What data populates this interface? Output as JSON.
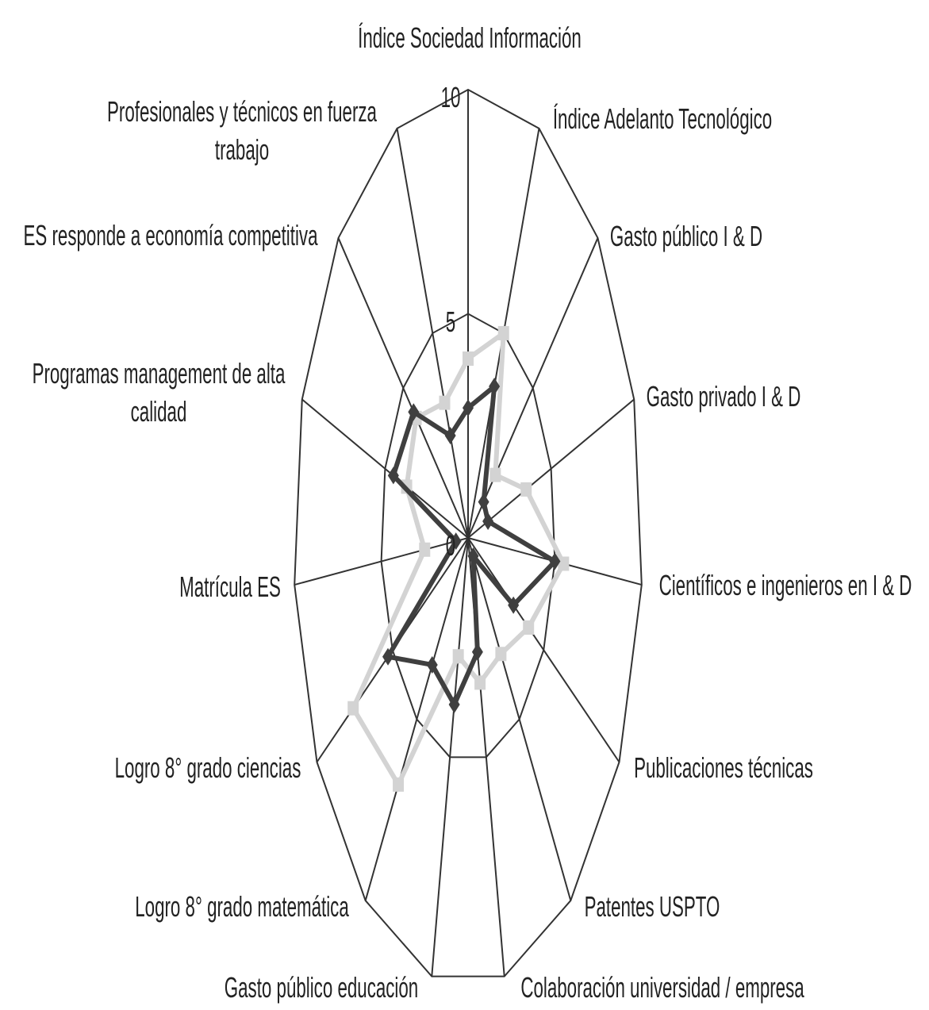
{
  "chart_data": {
    "type": "radar",
    "categories": [
      "Índice Sociedad Información",
      "Índice Adelanto Tecnológico",
      "Gasto público I & D",
      "Gasto privado I & D",
      "Científicos e ingenieros en I & D",
      "Publicaciones técnicas",
      "Patentes  USPTO",
      "Colaboración universidad / empresa",
      "Gasto público  educación",
      "Logro  8° grado matemática",
      "Logro  8° grado ciencias",
      "Matrícula ES",
      "Programas management de alta calidad",
      "ES responde a  economía competitiva",
      "Profesionales y técnicos en fuerza trabajo"
    ],
    "series": [
      {
        "color": "#3f3f3f",
        "marker": "diamond",
        "values": [
          2.9,
          3.7,
          1.2,
          1.2,
          5.0,
          3.0,
          0.5,
          2.6,
          3.8,
          3.5,
          5.3,
          0.7,
          4.5,
          4.2,
          2.5
        ]
      },
      {
        "color": "#d3d3d3",
        "marker": "square",
        "values": [
          4.0,
          5.0,
          2.1,
          3.5,
          5.5,
          4.0,
          3.2,
          3.3,
          2.7,
          6.8,
          7.6,
          2.5,
          3.7,
          4.0,
          3.3
        ]
      }
    ],
    "ylim": [
      0,
      10
    ],
    "yticks": [
      0,
      5,
      10
    ],
    "grid": true
  }
}
